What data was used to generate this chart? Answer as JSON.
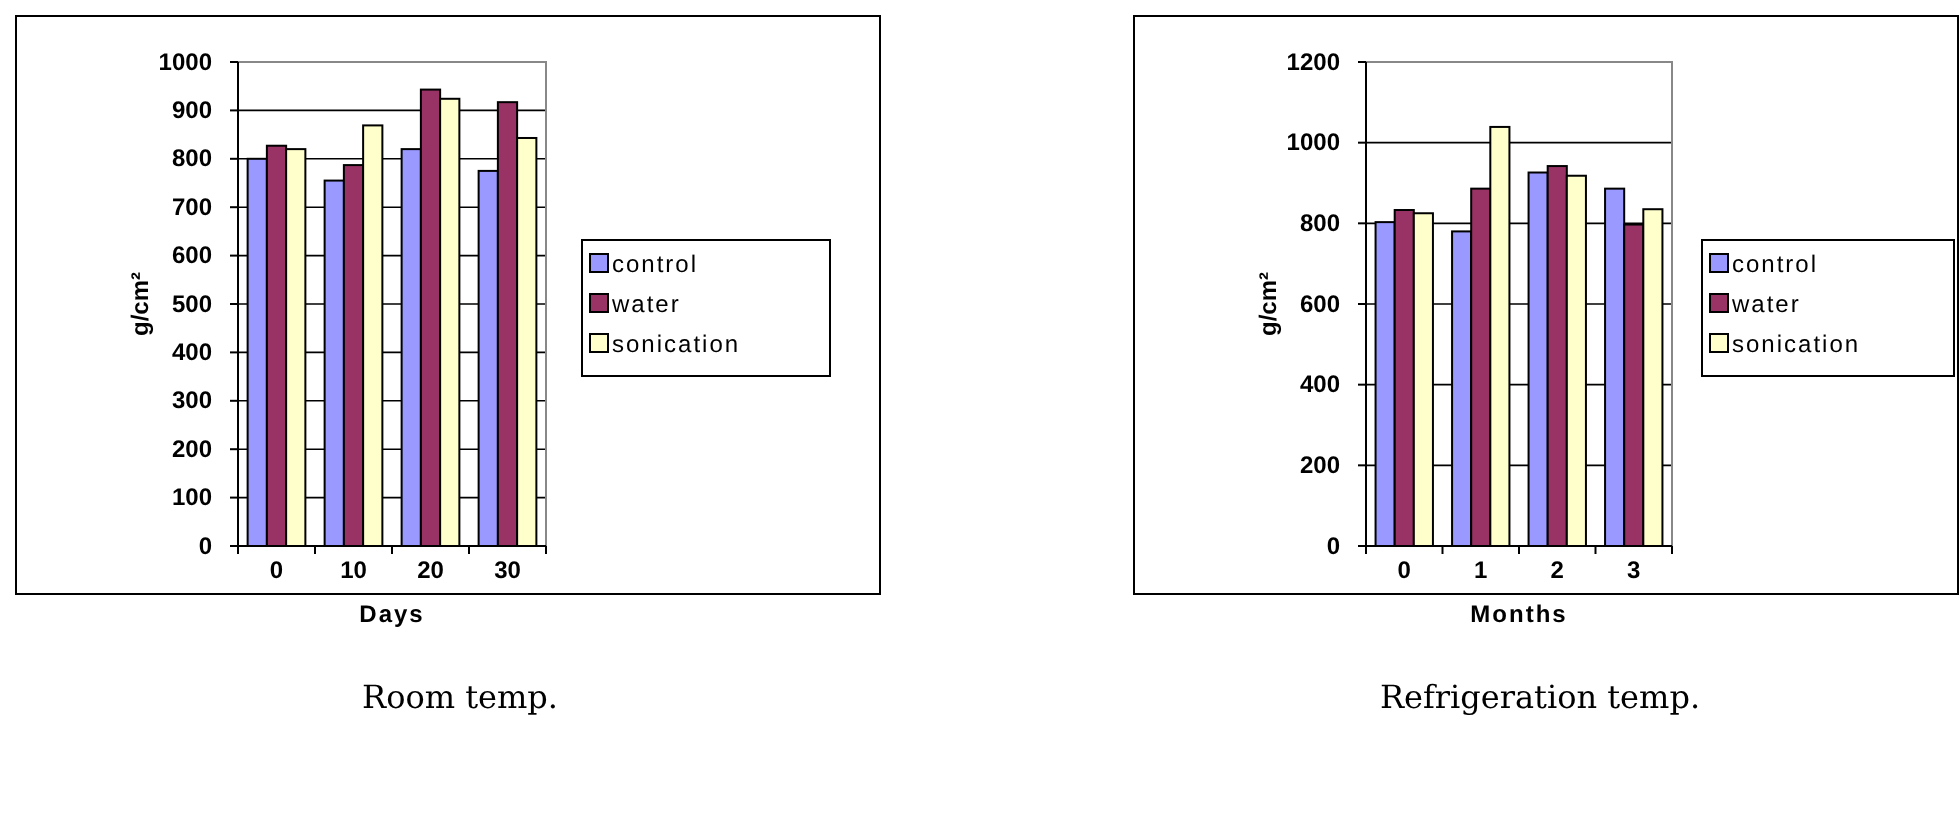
{
  "chart_data": [
    {
      "type": "bar",
      "title": "Room temp.",
      "xlabel": "Days",
      "ylabel": "g/cm²",
      "categories": [
        "0",
        "10",
        "20",
        "30"
      ],
      "series": [
        {
          "name": "control",
          "color": "#9999ff",
          "values": [
            800,
            755,
            820,
            775
          ]
        },
        {
          "name": "water",
          "color": "#993366",
          "values": [
            827,
            787,
            943,
            917
          ]
        },
        {
          "name": "sonication",
          "color": "#ffffcc",
          "values": [
            820,
            869,
            924,
            843
          ]
        }
      ],
      "ylim": [
        0,
        1000
      ],
      "yticks": [
        0,
        100,
        200,
        300,
        400,
        500,
        600,
        700,
        800,
        900,
        1000
      ],
      "grid": "y",
      "legend": "right"
    },
    {
      "type": "bar",
      "title": "Refrigeration temp.",
      "xlabel": "Months",
      "ylabel": "g/cm²",
      "categories": [
        "0",
        "1",
        "2",
        "3"
      ],
      "series": [
        {
          "name": "control",
          "color": "#9999ff",
          "values": [
            803,
            780,
            926,
            886
          ]
        },
        {
          "name": "water",
          "color": "#993366",
          "values": [
            833,
            886,
            942,
            797
          ]
        },
        {
          "name": "sonication",
          "color": "#ffffcc",
          "values": [
            825,
            1039,
            918,
            835
          ]
        }
      ],
      "ylim": [
        0,
        1200
      ],
      "yticks": [
        0,
        200,
        400,
        600,
        800,
        1000,
        1200
      ],
      "grid": "y",
      "legend": "right"
    }
  ]
}
